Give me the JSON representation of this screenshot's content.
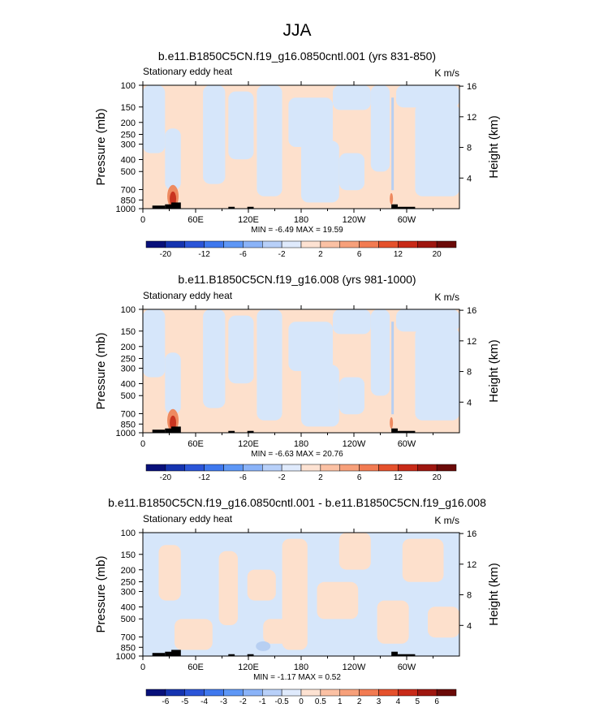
{
  "page": {
    "title": "JJA"
  },
  "colors": {
    "light_orange": "#fde0cc",
    "light_blue": "#d6e6fa",
    "mid_blue": "#b7cff2",
    "red_core": "#c93420",
    "orange_core": "#ee8a60",
    "topo": "#000000"
  },
  "chart_data": [
    {
      "type": "heatmap",
      "title": "b.e11.B1850C5CN.f19_g16.0850cntl.001 (yrs 831-850)",
      "left_label": "Stationary eddy heat",
      "right_label": "K m/s",
      "ylabel": "Pressure (mb)",
      "ylabel_right": "Height (km)",
      "x_ticks": [
        "0",
        "60E",
        "120E",
        "180",
        "120W",
        "60W"
      ],
      "y_ticks": [
        "100",
        "150",
        "200",
        "250",
        "300",
        "400",
        "500",
        "700",
        "850",
        "1000"
      ],
      "height_ticks": [
        "16",
        "12",
        "8",
        "4"
      ],
      "stats": "MIN =  -6.49  MAX =  19.59",
      "colorbar_labels": [
        "-20",
        "-12",
        "-6",
        "-2",
        "2",
        "6",
        "12",
        "20"
      ]
    },
    {
      "type": "heatmap",
      "title": "b.e11.B1850C5CN.f19_g16.008 (yrs 981-1000)",
      "left_label": "Stationary eddy heat",
      "right_label": "K m/s",
      "ylabel": "Pressure (mb)",
      "ylabel_right": "Height (km)",
      "x_ticks": [
        "0",
        "60E",
        "120E",
        "180",
        "120W",
        "60W"
      ],
      "y_ticks": [
        "100",
        "150",
        "200",
        "250",
        "300",
        "400",
        "500",
        "700",
        "850",
        "1000"
      ],
      "height_ticks": [
        "16",
        "12",
        "8",
        "4"
      ],
      "stats": "MIN =  -6.63  MAX =  20.76",
      "colorbar_labels": [
        "-20",
        "-12",
        "-6",
        "-2",
        "2",
        "6",
        "12",
        "20"
      ]
    },
    {
      "type": "heatmap",
      "title": "b.e11.B1850C5CN.f19_g16.0850cntl.001 - b.e11.B1850C5CN.f19_g16.008",
      "left_label": "Stationary eddy heat",
      "right_label": "K m/s",
      "ylabel": "Pressure (mb)",
      "ylabel_right": "Height (km)",
      "x_ticks": [
        "0",
        "60E",
        "120E",
        "180",
        "120W",
        "60W"
      ],
      "y_ticks": [
        "100",
        "150",
        "200",
        "250",
        "300",
        "400",
        "500",
        "700",
        "850",
        "1000"
      ],
      "height_ticks": [
        "16",
        "12",
        "8",
        "4"
      ],
      "stats": "MIN =  -1.17  MAX =  0.52",
      "colorbar_labels": [
        "-6",
        "-5",
        "-4",
        "-3",
        "-2",
        "-1",
        "-0.5",
        "0",
        "0.5",
        "1",
        "2",
        "3",
        "4",
        "5",
        "6"
      ]
    }
  ],
  "colorbar_colors": {
    "panels_1_2": [
      "#08107a",
      "#1534b0",
      "#2b55d8",
      "#3f78ee",
      "#5e97f6",
      "#8ab3f8",
      "#b8d0f9",
      "#dfeafc",
      "#fde2d2",
      "#fbc1a4",
      "#f7a07a",
      "#f27b52",
      "#e5512c",
      "#c82a18",
      "#9e160f",
      "#6b0a08"
    ],
    "panel_3": [
      "#08107a",
      "#1534b0",
      "#2b55d8",
      "#3f78ee",
      "#5e97f6",
      "#8ab3f8",
      "#b8d0f9",
      "#dfeafc",
      "#fde2d2",
      "#fbc1a4",
      "#f7a07a",
      "#f27b52",
      "#e5512c",
      "#c82a18",
      "#9e160f",
      "#6b0a08"
    ]
  }
}
